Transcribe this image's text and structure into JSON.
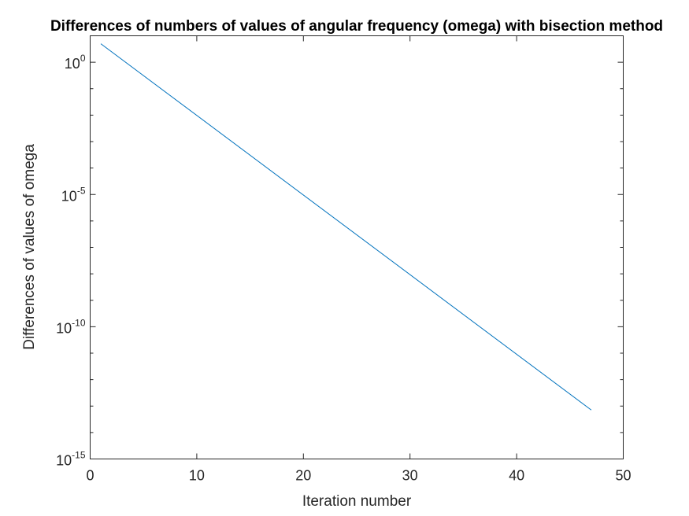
{
  "chart_data": {
    "type": "line",
    "title": "Differences of numbers of values of angular frequency (omega) with bisection method",
    "xlabel": "Iteration number",
    "ylabel": "Differences of values of omega",
    "xlim": [
      0,
      50
    ],
    "ylim": [
      1e-15,
      10
    ],
    "yscale": "log",
    "grid": false,
    "legend": "none",
    "x_ticks": [
      {
        "value": 0,
        "label": "0"
      },
      {
        "value": 10,
        "label": "10"
      },
      {
        "value": 20,
        "label": "20"
      },
      {
        "value": 30,
        "label": "30"
      },
      {
        "value": 40,
        "label": "40"
      },
      {
        "value": 50,
        "label": "50"
      }
    ],
    "y_ticks": [
      {
        "value": 1e-15,
        "base": "10",
        "exp": "-15"
      },
      {
        "value": 1e-10,
        "base": "10",
        "exp": "-10"
      },
      {
        "value": 1e-05,
        "base": "10",
        "exp": "-5"
      },
      {
        "value": 1,
        "base": "10",
        "exp": "0"
      }
    ],
    "series": [
      {
        "color": "#0072BD",
        "x": [
          1,
          47
        ],
        "y": [
          5,
          7.1e-14
        ]
      }
    ]
  }
}
